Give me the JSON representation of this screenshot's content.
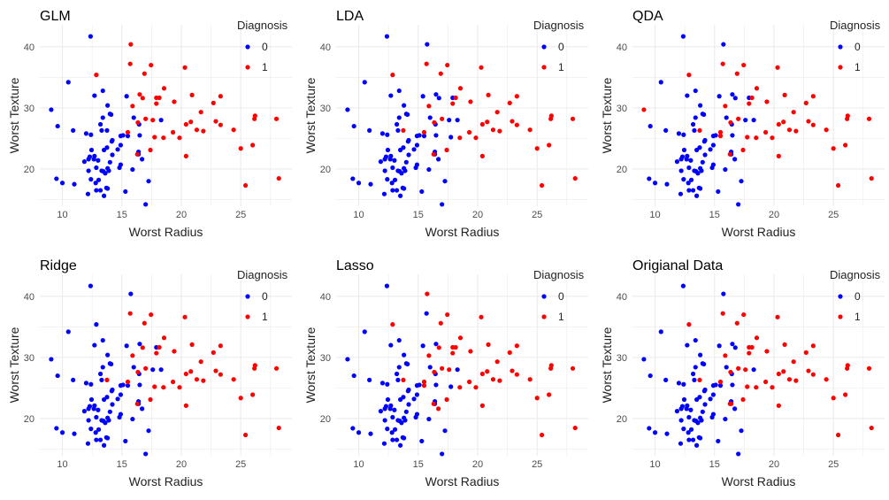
{
  "colors": {
    "0": "#0000ff",
    "1": "#ff0000",
    "grid": "#ebebeb"
  },
  "points": [
    [
      12.37,
      41.7
    ],
    [
      10.5,
      34.2
    ],
    [
      9.06,
      29.7
    ],
    [
      9.6,
      27.0
    ],
    [
      10.9,
      26.3
    ],
    [
      12.0,
      25.8
    ],
    [
      12.4,
      25.6
    ],
    [
      12.7,
      32.0
    ],
    [
      13.4,
      32.8
    ],
    [
      13.8,
      30.4
    ],
    [
      13.4,
      28.4
    ],
    [
      14.0,
      29.0
    ],
    [
      14.1,
      28.9
    ],
    [
      13.2,
      27.3
    ],
    [
      13.3,
      26.3
    ],
    [
      13.75,
      26.3
    ],
    [
      15.4,
      31.9
    ],
    [
      16.0,
      28.4
    ],
    [
      16.45,
      27.3
    ],
    [
      16.5,
      25.5
    ],
    [
      18.3,
      28.0
    ],
    [
      15.5,
      25.4
    ],
    [
      15.1,
      25.5
    ],
    [
      14.9,
      25.4
    ],
    [
      14.2,
      24.7
    ],
    [
      14.15,
      24.5
    ],
    [
      14.9,
      23.9
    ],
    [
      14.65,
      23.2
    ],
    [
      13.75,
      23.5
    ],
    [
      13.5,
      23.1
    ],
    [
      14.2,
      22.3
    ],
    [
      12.45,
      23.1
    ],
    [
      11.85,
      21.2
    ],
    [
      12.2,
      21.6
    ],
    [
      12.3,
      22.0
    ],
    [
      12.7,
      22.1
    ],
    [
      12.65,
      21.6
    ],
    [
      13.0,
      21.4
    ],
    [
      14.0,
      21.1
    ],
    [
      16.4,
      22.8
    ],
    [
      16.4,
      22.4
    ],
    [
      16.7,
      21.6
    ],
    [
      14.9,
      20.7
    ],
    [
      14.8,
      20.2
    ],
    [
      12.85,
      20.2
    ],
    [
      13.3,
      19.7
    ],
    [
      13.45,
      19.6
    ],
    [
      13.6,
      19.3
    ],
    [
      13.8,
      20.1
    ],
    [
      13.9,
      19.7
    ],
    [
      12.2,
      19.7
    ],
    [
      15.9,
      19.9
    ],
    [
      9.5,
      18.4
    ],
    [
      10.0,
      17.7
    ],
    [
      11.0,
      17.5
    ],
    [
      12.4,
      18.3
    ],
    [
      12.8,
      17.7
    ],
    [
      13.05,
      18.2
    ],
    [
      17.25,
      18.0
    ],
    [
      12.15,
      15.9
    ],
    [
      12.85,
      16.5
    ],
    [
      13.2,
      16.5
    ],
    [
      13.7,
      16.9
    ],
    [
      13.8,
      16.8
    ],
    [
      13.5,
      15.6
    ],
    [
      15.3,
      16.3
    ],
    [
      17.0,
      14.2
    ],
    [
      12.85,
      35.4
    ],
    [
      15.75,
      40.4
    ],
    [
      15.7,
      37.2
    ],
    [
      17.45,
      37.0
    ],
    [
      16.9,
      35.6
    ],
    [
      20.3,
      36.6
    ],
    [
      18.55,
      33.2
    ],
    [
      16.5,
      32.2
    ],
    [
      16.75,
      31.6
    ],
    [
      17.9,
      31.65
    ],
    [
      18.15,
      31.65
    ],
    [
      17.9,
      30.7
    ],
    [
      15.9,
      30.3
    ],
    [
      19.4,
      31.0
    ],
    [
      20.9,
      32.1
    ],
    [
      22.7,
      30.8
    ],
    [
      23.3,
      31.9
    ],
    [
      21.65,
      29.3
    ],
    [
      17.0,
      28.2
    ],
    [
      17.6,
      28.0
    ],
    [
      16.35,
      27.6
    ],
    [
      20.8,
      27.7
    ],
    [
      20.4,
      27.3
    ],
    [
      22.9,
      27.8
    ],
    [
      23.3,
      27.2
    ],
    [
      21.3,
      26.4
    ],
    [
      21.85,
      26.2
    ],
    [
      19.3,
      26.0
    ],
    [
      15.5,
      26.0
    ],
    [
      17.75,
      25.2
    ],
    [
      18.5,
      25.1
    ],
    [
      19.85,
      25.1
    ],
    [
      24.4,
      26.4
    ],
    [
      26.2,
      28.7
    ],
    [
      26.15,
      28.2
    ],
    [
      28.0,
      28.2
    ],
    [
      17.4,
      23.1
    ],
    [
      20.4,
      22.1
    ],
    [
      25.0,
      23.35
    ],
    [
      26.0,
      23.9
    ],
    [
      16.3,
      22.4
    ],
    [
      25.4,
      17.3
    ],
    [
      28.2,
      18.45
    ]
  ],
  "chart_data": [
    {
      "type": "scatter",
      "title": "GLM",
      "xlabel": "Worst Radius",
      "ylabel": "Worst Texture",
      "xticks": [
        "10",
        "15",
        "20",
        "25"
      ],
      "yticks": [
        "20",
        "30",
        "40"
      ],
      "xlim": [
        8.1,
        29.3
      ],
      "ylim": [
        13.9,
        43.6
      ],
      "grid": true,
      "legend": {
        "title": "Diagnosis",
        "entries": [
          "0",
          "1"
        ],
        "placement": "top-right"
      },
      "flip_to_1": [],
      "flip_to_0": []
    },
    {
      "type": "scatter",
      "title": "LDA",
      "xlabel": "Worst Radius",
      "ylabel": "Worst Texture",
      "xticks": [
        "10",
        "15",
        "20",
        "25"
      ],
      "yticks": [
        "20",
        "30",
        "40"
      ],
      "xlim": [
        8.1,
        29.3
      ],
      "ylim": [
        13.9,
        43.6
      ],
      "grid": true,
      "legend": {
        "title": "Diagnosis",
        "entries": [
          "0",
          "1"
        ],
        "placement": "top-right"
      },
      "flip_to_1": [
        15
      ],
      "flip_to_0": [
        68,
        74,
        75,
        76,
        86,
        96
      ]
    },
    {
      "type": "scatter",
      "title": "QDA",
      "xlabel": "Worst Radius",
      "ylabel": "Worst Texture",
      "xticks": [
        "10",
        "15",
        "20",
        "25"
      ],
      "yticks": [
        "20",
        "30",
        "40"
      ],
      "xlim": [
        8.1,
        29.3
      ],
      "ylim": [
        13.9,
        43.6
      ],
      "grid": true,
      "legend": {
        "title": "Diagnosis",
        "entries": [
          "0",
          "1"
        ],
        "placement": "top-right"
      },
      "flip_to_1": [
        2,
        15,
        21
      ],
      "flip_to_0": [
        68,
        74,
        75,
        76,
        86
      ]
    },
    {
      "type": "scatter",
      "title": "Ridge",
      "xlabel": "Worst Radius",
      "ylabel": "Worst Texture",
      "xticks": [
        "10",
        "15",
        "20",
        "25"
      ],
      "yticks": [
        "20",
        "30",
        "40"
      ],
      "xlim": [
        8.1,
        29.3
      ],
      "ylim": [
        13.9,
        43.6
      ],
      "grid": true,
      "legend": {
        "title": "Diagnosis",
        "entries": [
          "0",
          "1"
        ],
        "placement": "top-right"
      },
      "flip_to_1": [
        15
      ],
      "flip_to_0": [
        67,
        68,
        74,
        76,
        86
      ]
    },
    {
      "type": "scatter",
      "title": "Lasso",
      "xlabel": "Worst Radius",
      "ylabel": "Worst Texture",
      "xticks": [
        "10",
        "15",
        "20",
        "25"
      ],
      "yticks": [
        "20",
        "30",
        "40"
      ],
      "xlim": [
        8.1,
        29.3
      ],
      "ylim": [
        13.9,
        43.6
      ],
      "grid": true,
      "legend": {
        "title": "Diagnosis",
        "entries": [
          "0",
          "1"
        ],
        "placement": "top-right"
      },
      "flip_to_1": [
        15,
        21,
        41
      ],
      "flip_to_0": [
        69,
        74,
        96
      ]
    },
    {
      "type": "scatter",
      "title": "Origianal Data",
      "xlabel": "Worst Radius",
      "ylabel": "Worst Texture",
      "xticks": [
        "10",
        "15",
        "20",
        "25"
      ],
      "yticks": [
        "20",
        "30",
        "40"
      ],
      "xlim": [
        8.1,
        29.3
      ],
      "ylim": [
        13.9,
        43.6
      ],
      "grid": true,
      "legend": {
        "title": "Diagnosis",
        "entries": [
          "0",
          "1"
        ],
        "placement": "top-right"
      },
      "flip_to_1": [
        15,
        40
      ],
      "flip_to_0": [
        68,
        74,
        75
      ]
    }
  ]
}
